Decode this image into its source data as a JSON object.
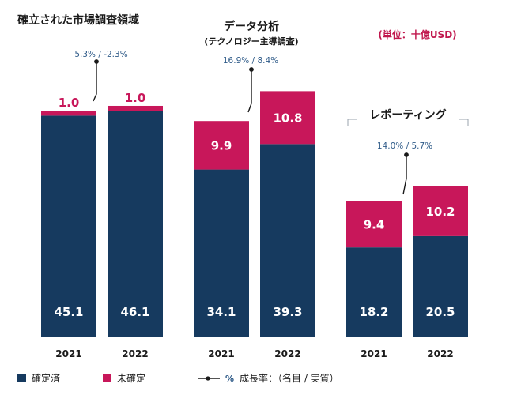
{
  "unit_label": "(単位：十億USD)",
  "colors": {
    "confirmed": "#163a5f",
    "unconfirmed": "#c8175a",
    "rate_text": "#2e5a88"
  },
  "chart_data": [
    {
      "type": "bar",
      "stacked": true,
      "title": "確立された市場調査領域",
      "subtitle": "",
      "categories": [
        "2021",
        "2022"
      ],
      "series": [
        {
          "name": "確定済",
          "values": [
            45.1,
            46.1
          ]
        },
        {
          "name": "未確定",
          "values": [
            1.0,
            1.0
          ]
        }
      ],
      "growth_label": "5.3% / -2.3%"
    },
    {
      "type": "bar",
      "stacked": true,
      "title": "データ分析",
      "subtitle": "(テクノロジー主導調査)",
      "categories": [
        "2021",
        "2022"
      ],
      "series": [
        {
          "name": "確定済",
          "values": [
            34.1,
            39.3
          ]
        },
        {
          "name": "未確定",
          "values": [
            9.9,
            10.8
          ]
        }
      ],
      "growth_label": "16.9% / 8.4%"
    },
    {
      "type": "bar",
      "stacked": true,
      "title": "レポーティング",
      "subtitle": "",
      "categories": [
        "2021",
        "2022"
      ],
      "series": [
        {
          "name": "確定済",
          "values": [
            18.2,
            20.5
          ]
        },
        {
          "name": "未確定",
          "values": [
            9.4,
            10.2
          ]
        }
      ],
      "growth_label": "14.0% / 5.7%"
    }
  ],
  "legend": {
    "confirmed": "確定済",
    "unconfirmed": "未確定",
    "rate_symbol": "%",
    "rate_label": "成長率：（名目 / 実質）"
  }
}
